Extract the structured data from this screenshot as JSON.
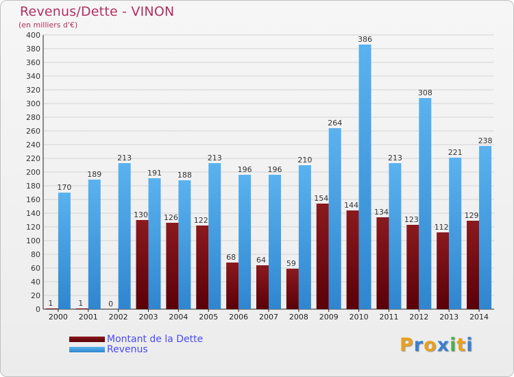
{
  "chart_data": {
    "type": "bar",
    "title": "Revenus/Dette - VINON",
    "subtitle": "(en milliers d'€)",
    "categories": [
      "2000",
      "2001",
      "2002",
      "2003",
      "2004",
      "2005",
      "2006",
      "2007",
      "2008",
      "2009",
      "2010",
      "2011",
      "2012",
      "2013",
      "2014"
    ],
    "series": [
      {
        "name": "Montant de la Dette",
        "color": "#7a0c12",
        "values": [
          1,
          1,
          0,
          130,
          126,
          122,
          68,
          64,
          59,
          154,
          144,
          134,
          123,
          112,
          129
        ]
      },
      {
        "name": "Revenus",
        "color": "#3a9ae0",
        "values": [
          170,
          189,
          213,
          191,
          188,
          213,
          196,
          196,
          210,
          264,
          386,
          213,
          308,
          221,
          238
        ]
      }
    ],
    "ylim": [
      0,
      400
    ],
    "ytick_step": 20,
    "grid": true,
    "legend_position": "bottom-left"
  },
  "logo": {
    "letters": [
      "P",
      "r",
      "o",
      "x",
      "i",
      "t",
      "i"
    ],
    "colors": [
      "#e8a020",
      "#3a7fd0",
      "#e8a020",
      "#3a7fd0",
      "#4caf50",
      "#e8a020",
      "#3a7fd0"
    ]
  }
}
